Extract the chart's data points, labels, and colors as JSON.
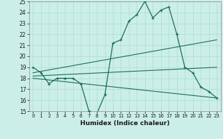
{
  "xlabel": "Humidex (Indice chaleur)",
  "xlim": [
    -0.5,
    23.5
  ],
  "ylim": [
    15,
    25
  ],
  "yticks": [
    15,
    16,
    17,
    18,
    19,
    20,
    21,
    22,
    23,
    24,
    25
  ],
  "xticks": [
    0,
    1,
    2,
    3,
    4,
    5,
    6,
    7,
    8,
    9,
    10,
    11,
    12,
    13,
    14,
    15,
    16,
    17,
    18,
    19,
    20,
    21,
    22,
    23
  ],
  "bg_color": "#cceee8",
  "line_color": "#1a6b5a",
  "grid_color": "#aaddcc",
  "curve1_x": [
    0,
    1,
    2,
    3,
    4,
    5,
    6,
    7,
    8,
    9,
    10,
    11,
    12,
    13,
    14,
    15,
    16,
    17,
    18,
    19,
    20,
    21,
    22,
    23
  ],
  "curve1_y": [
    19,
    18.5,
    17.5,
    18,
    18,
    18,
    17.5,
    15,
    14.8,
    16.5,
    21.2,
    21.5,
    23.2,
    23.8,
    25.0,
    23.5,
    24.2,
    24.5,
    22.0,
    19.0,
    18.5,
    17.2,
    16.8,
    16.2
  ],
  "line2_x": [
    0,
    23
  ],
  "line2_y": [
    18.5,
    21.5
  ],
  "line3_x": [
    0,
    23
  ],
  "line3_y": [
    18.2,
    19.0
  ],
  "line4_x": [
    0,
    23
  ],
  "line4_y": [
    18.0,
    16.2
  ],
  "marker": "+"
}
